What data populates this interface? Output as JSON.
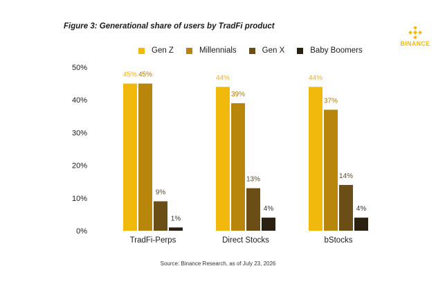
{
  "title": "Figure 3: Generational share of users by TradFi product",
  "logo": {
    "text": "BINANCE",
    "icon": "binance-diamond-icon",
    "color": "#F0B90B"
  },
  "source": "Source: Binance Research, as of July 23, 2026",
  "chart_data": {
    "type": "bar",
    "categories": [
      "TradFi-Perps",
      "Direct Stocks",
      "bStocks"
    ],
    "series": [
      {
        "name": "Gen Z",
        "values": [
          45,
          44,
          44
        ],
        "labels": [
          "45%",
          "44%",
          "44%"
        ],
        "color": "#F0B90B",
        "label_color": "#E8B20E"
      },
      {
        "name": "Millennials",
        "values": [
          45,
          39,
          37
        ],
        "labels": [
          "45%",
          "39%",
          "37%"
        ],
        "color": "#B8860B",
        "label_color": "#A87A0A"
      },
      {
        "name": "Gen X",
        "values": [
          9,
          13,
          14
        ],
        "labels": [
          "9%",
          "13%",
          "14%"
        ],
        "color": "#6B4E16",
        "label_color": "#5a4a2a"
      },
      {
        "name": "Baby Boomers",
        "values": [
          1,
          4,
          4
        ],
        "labels": [
          "1%",
          "4%",
          "4%"
        ],
        "color": "#2B2110",
        "label_color": "#333333"
      }
    ],
    "yticks": [
      "0%",
      "10%",
      "20%",
      "30%",
      "40%",
      "50%"
    ],
    "ylim": [
      0,
      50
    ],
    "grid": false,
    "legend_position": "top"
  }
}
